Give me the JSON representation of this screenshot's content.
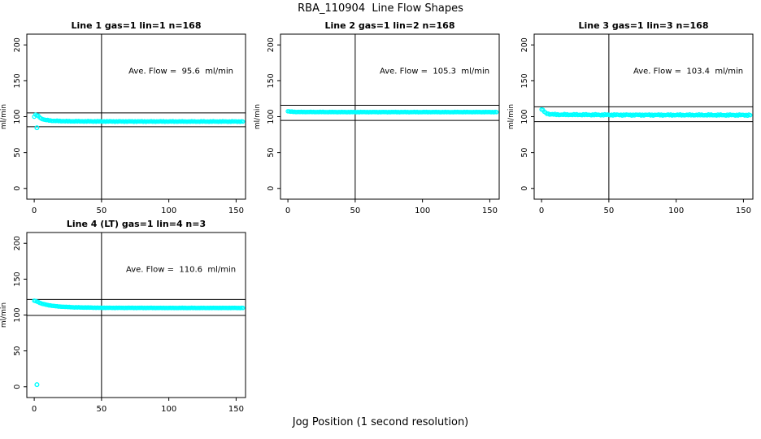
{
  "page": {
    "title": "RBA_110904  Line Flow Shapes",
    "xlabel": "Jog Position (1 second resolution)"
  },
  "colors": {
    "marker": "#00ffff",
    "axis": "#000000",
    "background": "#ffffff"
  },
  "chart_data": [
    {
      "type": "scatter",
      "title": "Line 1 gas=1 lin=1 n=168",
      "annotation": "Ave. Flow =  95.6  ml/min",
      "ave_flow_ml_min": 95.6,
      "gas": 1,
      "lin": 1,
      "n": 168,
      "ylabel": "ml/min",
      "xticks": [
        0,
        50,
        100,
        150
      ],
      "yticks": [
        0,
        50,
        100,
        150,
        200
      ],
      "xlim": [
        -5.5,
        157
      ],
      "ylim": [
        -15,
        215
      ],
      "vline_x": 50,
      "hlines": [
        105.2,
        86.0
      ],
      "annotation_pos": [
        109,
        160
      ],
      "series_anchors": [
        [
          0,
          100
        ],
        [
          1,
          102.5
        ],
        [
          3,
          101
        ],
        [
          5,
          97.5
        ],
        [
          8,
          95.5
        ],
        [
          14,
          94.2
        ],
        [
          25,
          93.6
        ],
        [
          60,
          93.3
        ],
        [
          155,
          93.2
        ]
      ],
      "outliers": [
        [
          2,
          84.5
        ]
      ],
      "band_jitter": 0.45,
      "x_end": 155
    },
    {
      "type": "scatter",
      "title": "Line 2 gas=1 lin=2 n=168",
      "annotation": "Ave. Flow =  105.3  ml/min",
      "ave_flow_ml_min": 105.3,
      "gas": 1,
      "lin": 2,
      "n": 168,
      "ylabel": "ml/min",
      "xticks": [
        0,
        50,
        100,
        150
      ],
      "yticks": [
        0,
        50,
        100,
        150,
        200
      ],
      "xlim": [
        -5.5,
        157
      ],
      "ylim": [
        -15,
        215
      ],
      "vline_x": 50,
      "hlines": [
        115.8,
        94.8
      ],
      "annotation_pos": [
        109,
        160
      ],
      "series_anchors": [
        [
          0,
          107.5
        ],
        [
          2,
          107
        ],
        [
          6,
          106.6
        ],
        [
          40,
          106.4
        ],
        [
          155,
          106.4
        ]
      ],
      "outliers": [],
      "band_jitter": 0.3,
      "x_end": 155
    },
    {
      "type": "scatter",
      "title": "Line 3 gas=1 lin=3 n=168",
      "annotation": "Ave. Flow =  103.4  ml/min",
      "ave_flow_ml_min": 103.4,
      "gas": 1,
      "lin": 3,
      "n": 168,
      "ylabel": "ml/min",
      "xticks": [
        0,
        50,
        100,
        150
      ],
      "yticks": [
        0,
        50,
        100,
        150,
        200
      ],
      "xlim": [
        -5.5,
        157
      ],
      "ylim": [
        -15,
        215
      ],
      "vline_x": 50,
      "hlines": [
        113.7,
        93.1
      ],
      "annotation_pos": [
        109,
        160
      ],
      "series_anchors": [
        [
          0,
          110
        ],
        [
          1,
          109
        ],
        [
          3,
          105
        ],
        [
          6,
          103.5
        ],
        [
          12,
          102.8
        ],
        [
          60,
          102.4
        ],
        [
          155,
          102.2
        ]
      ],
      "outliers": [],
      "band_jitter": 0.9,
      "x_end": 155
    },
    {
      "type": "scatter",
      "title": "Line 4 (LT) gas=1 lin=4 n=3",
      "annotation": "Ave. Flow =  110.6  ml/min",
      "ave_flow_ml_min": 110.6,
      "gas": 1,
      "lin": 4,
      "n": 3,
      "ylabel": "ml/min",
      "xticks": [
        0,
        50,
        100,
        150
      ],
      "yticks": [
        0,
        50,
        100,
        150,
        200
      ],
      "xlim": [
        -5.5,
        157
      ],
      "ylim": [
        -15,
        215
      ],
      "vline_x": 50,
      "hlines": [
        121.7,
        99.5
      ],
      "annotation_pos": [
        109,
        160
      ],
      "series_anchors": [
        [
          0,
          120
        ],
        [
          2,
          118.8
        ],
        [
          5,
          116.3
        ],
        [
          10,
          113.8
        ],
        [
          18,
          111.9
        ],
        [
          30,
          110.7
        ],
        [
          50,
          110.1
        ],
        [
          100,
          109.9
        ],
        [
          155,
          109.9
        ]
      ],
      "outliers": [
        [
          2,
          3
        ]
      ],
      "band_jitter": 0.25,
      "x_end": 155
    }
  ]
}
